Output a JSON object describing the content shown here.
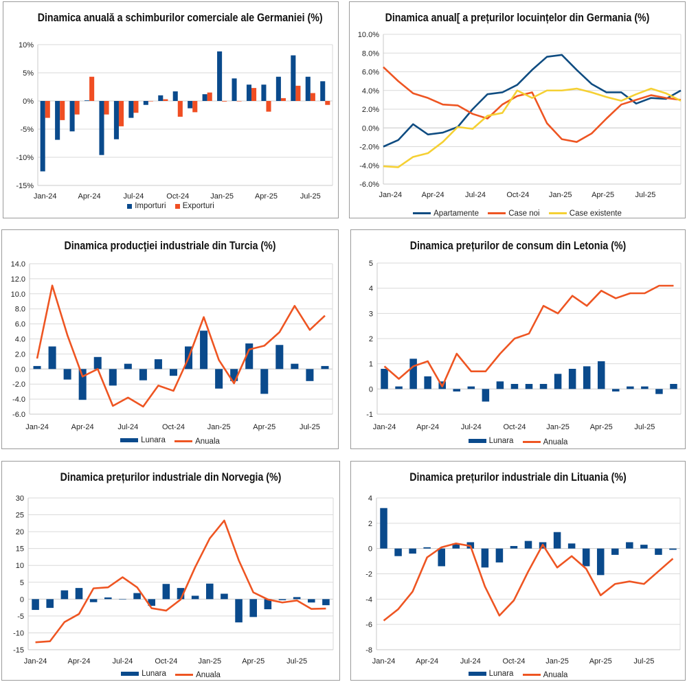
{
  "colors": {
    "blue": "#0a4a8c",
    "orange": "#f04e23",
    "red_line": "#ee5522",
    "yellow": "#f5d033",
    "grid": "#d9d9d9"
  },
  "chart_data": [
    {
      "id": "germany-trade",
      "type": "bar",
      "title": "Dinamica anuală a schimburilor comerciale ale Germaniei (%)",
      "xlabel": "",
      "ylabel": "",
      "categories": [
        "Jan-24",
        "Feb-24",
        "Mar-24",
        "Apr-24",
        "May-24",
        "Jun-24",
        "Jul-24",
        "Aug-24",
        "Sep-24",
        "Oct-24",
        "Nov-24",
        "Dec-24",
        "Jan-25",
        "Feb-25",
        "Mar-25",
        "Apr-25",
        "May-25",
        "Jun-25",
        "Jul-25",
        "Aug-25"
      ],
      "x_tick_labels": [
        "Jan-24",
        "Apr-24",
        "Jul-24",
        "Oct-24",
        "Jan-25",
        "Apr-25",
        "Jul-25"
      ],
      "y_tick_labels": [
        "10%",
        "5%",
        "0%",
        "-5%",
        "-10%",
        "-15%"
      ],
      "ylim": [
        -15,
        10
      ],
      "ystep": 5,
      "grid": true,
      "legend_position": "bottom",
      "series": [
        {
          "name": "Importuri",
          "kind": "bar",
          "color": "#0a4a8c",
          "values": [
            -12.5,
            -6.9,
            -5.4,
            0.1,
            -9.6,
            -6.8,
            -3.0,
            -0.7,
            1.0,
            1.7,
            -1.3,
            1.2,
            8.8,
            4.0,
            2.9,
            2.9,
            4.3,
            8.1,
            4.3,
            3.5
          ]
        },
        {
          "name": "Exporturi",
          "kind": "bar",
          "color": "#f04e23",
          "values": [
            -3.0,
            -3.4,
            -2.4,
            4.3,
            -2.4,
            -4.5,
            -2.1,
            0.0,
            0.3,
            -2.8,
            -2.0,
            1.5,
            -0.1,
            0.0,
            2.3,
            -1.9,
            0.5,
            2.7,
            1.4,
            -0.7
          ]
        }
      ]
    },
    {
      "id": "germany-housing",
      "type": "line",
      "title": "Dinamica anual[ a prețurilor locuințelor din Germania (%)",
      "xlabel": "",
      "ylabel": "",
      "categories": [
        "Jan-24",
        "Feb-24",
        "Mar-24",
        "Apr-24",
        "May-24",
        "Jun-24",
        "Jul-24",
        "Aug-24",
        "Sep-24",
        "Oct-24",
        "Nov-24",
        "Dec-24",
        "Jan-25",
        "Feb-25",
        "Mar-25",
        "Apr-25",
        "May-25",
        "Jun-25",
        "Jul-25",
        "Aug-25",
        "Sep-25"
      ],
      "x_tick_labels": [
        "Jan-24",
        "Apr-24",
        "Jul-24",
        "Oct-24",
        "Jan-25",
        "Apr-25",
        "Jul-25"
      ],
      "y_tick_labels": [
        "10.0%",
        "8.0%",
        "6.0%",
        "4.0%",
        "2.0%",
        "0.0%",
        "-2.0%",
        "-4.0%",
        "-6.0%"
      ],
      "ylim": [
        -6,
        10
      ],
      "ystep": 2,
      "grid": true,
      "legend_position": "bottom",
      "series": [
        {
          "name": "Apartamente",
          "kind": "line",
          "color": "#0f4c81",
          "values": [
            -2.0,
            -1.3,
            0.4,
            -0.7,
            -0.5,
            0.1,
            2.0,
            3.6,
            3.8,
            4.6,
            6.2,
            7.6,
            7.8,
            6.2,
            4.7,
            3.8,
            3.8,
            2.6,
            3.2,
            3.1,
            4.0
          ]
        },
        {
          "name": "Case noi",
          "kind": "line",
          "color": "#ee5522",
          "values": [
            6.5,
            5.0,
            3.7,
            3.2,
            2.5,
            2.4,
            1.5,
            1.0,
            2.5,
            3.4,
            3.8,
            0.5,
            -1.2,
            -1.5,
            -0.6,
            1.0,
            2.5,
            3.0,
            3.5,
            3.2,
            3.0
          ]
        },
        {
          "name": "Case existente",
          "kind": "line",
          "color": "#f5d033",
          "values": [
            -4.1,
            -4.2,
            -3.1,
            -2.7,
            -1.5,
            0.1,
            -0.1,
            1.3,
            1.6,
            4.0,
            3.2,
            4.0,
            4.0,
            4.2,
            3.8,
            3.3,
            2.9,
            3.6,
            4.2,
            3.7,
            2.9
          ]
        }
      ]
    },
    {
      "id": "turkey-industrial-production",
      "type": "bar",
      "title": "Dinamica producţiei industriale din Turcia (%)",
      "xlabel": "",
      "ylabel": "",
      "categories": [
        "Jan-24",
        "Feb-24",
        "Mar-24",
        "Apr-24",
        "May-24",
        "Jun-24",
        "Jul-24",
        "Aug-24",
        "Sep-24",
        "Oct-24",
        "Nov-24",
        "Dec-24",
        "Jan-25",
        "Feb-25",
        "Mar-25",
        "Apr-25",
        "May-25",
        "Jun-25",
        "Jul-25",
        "Aug-25"
      ],
      "x_tick_labels": [
        "Jan-24",
        "Apr-24",
        "Jul-24",
        "Oct-24",
        "Jan-25",
        "Apr-25",
        "Jul-25"
      ],
      "y_tick_labels": [
        "14.0",
        "12.0",
        "10.0",
        "8.0",
        "6.0",
        "4.0",
        "2.0",
        "0.0",
        "-2.0",
        "-4.0",
        "-6.0"
      ],
      "ylim": [
        -6,
        14
      ],
      "ystep": 2,
      "grid": true,
      "legend_position": "bottom",
      "series": [
        {
          "name": "Lunara",
          "kind": "bar",
          "color": "#0a4a8c",
          "values": [
            0.4,
            3.0,
            -1.4,
            -4.1,
            1.6,
            -2.2,
            0.7,
            -1.5,
            1.3,
            -0.9,
            3.0,
            5.1,
            -2.6,
            -1.6,
            3.4,
            -3.3,
            3.2,
            0.7,
            -1.6,
            0.4
          ]
        },
        {
          "name": "Anuala",
          "kind": "line",
          "color": "#ee5522",
          "values": [
            1.4,
            11.1,
            4.5,
            -1.0,
            0.0,
            -4.9,
            -3.8,
            -5.0,
            -2.2,
            -2.9,
            1.5,
            6.9,
            1.2,
            -1.9,
            2.6,
            3.1,
            4.9,
            8.4,
            5.2,
            7.1
          ]
        }
      ]
    },
    {
      "id": "latvia-cpi",
      "type": "bar",
      "title": "Dinamica prețurilor de consum din Letonia (%)",
      "xlabel": "",
      "ylabel": "",
      "categories": [
        "Jan-24",
        "Feb-24",
        "Mar-24",
        "Apr-24",
        "May-24",
        "Jun-24",
        "Jul-24",
        "Aug-24",
        "Sep-24",
        "Oct-24",
        "Nov-24",
        "Dec-24",
        "Jan-25",
        "Feb-25",
        "Mar-25",
        "Apr-25",
        "May-25",
        "Jun-25",
        "Jul-25",
        "Aug-25",
        "Sep-25"
      ],
      "x_tick_labels": [
        "Jan-24",
        "Apr-24",
        "Jul-24",
        "Oct-24",
        "Jan-25",
        "Apr-25",
        "Jul-25"
      ],
      "y_tick_labels": [
        "5",
        "4",
        "3",
        "2",
        "1",
        "0",
        "-1"
      ],
      "ylim": [
        -1,
        5
      ],
      "ystep": 1,
      "grid": true,
      "legend_position": "bottom",
      "series": [
        {
          "name": "Lunara",
          "kind": "bar",
          "color": "#0a4a8c",
          "values": [
            0.8,
            0.1,
            1.2,
            0.5,
            0.3,
            -0.1,
            0.1,
            -0.5,
            0.3,
            0.2,
            0.2,
            0.2,
            0.6,
            0.8,
            0.9,
            1.1,
            -0.1,
            0.1,
            0.1,
            -0.2,
            0.2
          ]
        },
        {
          "name": "Anuala",
          "kind": "line",
          "color": "#ee5522",
          "values": [
            0.9,
            0.4,
            0.9,
            1.1,
            0.1,
            1.4,
            0.7,
            0.7,
            1.4,
            2.0,
            2.2,
            3.3,
            3.0,
            3.7,
            3.3,
            3.9,
            3.6,
            3.8,
            3.8,
            4.1,
            4.1
          ]
        }
      ]
    },
    {
      "id": "norway-industrial-prices",
      "type": "bar",
      "title": "Dinamica prețurilor industriale din Norvegia (%)",
      "xlabel": "",
      "ylabel": "",
      "categories": [
        "Jan-24",
        "Feb-24",
        "Mar-24",
        "Apr-24",
        "May-24",
        "Jun-24",
        "Jul-24",
        "Aug-24",
        "Sep-24",
        "Oct-24",
        "Nov-24",
        "Dec-24",
        "Jan-25",
        "Feb-25",
        "Mar-25",
        "Apr-25",
        "May-25",
        "Jun-25",
        "Jul-25",
        "Aug-25",
        "Sep-25"
      ],
      "x_tick_labels": [
        "Jan-24",
        "Apr-24",
        "Jul-24",
        "Oct-24",
        "Jan-25",
        "Apr-25",
        "Jul-25"
      ],
      "y_tick_labels": [
        "30",
        "25",
        "20",
        "15",
        "10",
        "5",
        "0",
        "-5",
        "-10",
        "-15"
      ],
      "ylim": [
        -15,
        30
      ],
      "ystep": 5,
      "grid": true,
      "legend_position": "bottom",
      "series": [
        {
          "name": "Lunara",
          "kind": "bar",
          "color": "#0a4a8c",
          "values": [
            -3.2,
            -2.6,
            2.6,
            3.3,
            -0.9,
            0.5,
            0.0,
            1.8,
            -2.0,
            4.5,
            3.3,
            1.0,
            4.6,
            1.6,
            -6.9,
            -5.3,
            -3.0,
            -0.3,
            0.6,
            -1.0,
            -1.8
          ]
        },
        {
          "name": "Anuala",
          "kind": "line",
          "color": "#ee5522",
          "values": [
            -12.8,
            -12.5,
            -6.8,
            -4.4,
            3.2,
            3.5,
            6.5,
            3.5,
            -2.7,
            -3.4,
            -0.1,
            9.5,
            18.0,
            23.3,
            11.5,
            2.0,
            -0.1,
            -1.0,
            -0.4,
            -2.9,
            -2.8
          ]
        }
      ]
    },
    {
      "id": "lithuania-industrial-prices",
      "type": "bar",
      "title": "Dinamica prețurilor industriale din Lituania (%)",
      "xlabel": "",
      "ylabel": "",
      "categories": [
        "Jan-24",
        "Feb-24",
        "Mar-24",
        "Apr-24",
        "May-24",
        "Jun-24",
        "Jul-24",
        "Aug-24",
        "Sep-24",
        "Oct-24",
        "Nov-24",
        "Dec-24",
        "Jan-25",
        "Feb-25",
        "Mar-25",
        "Apr-25",
        "May-25",
        "Jun-25",
        "Jul-25",
        "Aug-25",
        "Sep-25"
      ],
      "x_tick_labels": [
        "Jan-24",
        "Apr-24",
        "Jul-24",
        "Oct-24",
        "Jan-25",
        "Apr-25",
        "Jul-25"
      ],
      "y_tick_labels": [
        "4",
        "2",
        "0",
        "-2",
        "-4",
        "-6",
        "-8"
      ],
      "ylim": [
        -8,
        4
      ],
      "ystep": 2,
      "grid": true,
      "legend_position": "bottom",
      "series": [
        {
          "name": "Lunara",
          "kind": "bar",
          "color": "#0a4a8c",
          "values": [
            3.2,
            -0.6,
            -0.4,
            0.1,
            -1.4,
            0.4,
            0.5,
            -1.5,
            -1.1,
            0.2,
            0.6,
            0.5,
            1.3,
            0.4,
            -1.4,
            -2.1,
            -0.5,
            0.5,
            0.3,
            -0.5,
            -0.1
          ]
        },
        {
          "name": "Anuala",
          "kind": "line",
          "color": "#ee5522",
          "values": [
            -5.7,
            -4.8,
            -3.4,
            -0.7,
            0.1,
            0.4,
            0.2,
            -3.0,
            -5.3,
            -4.1,
            -1.8,
            0.3,
            -1.5,
            -0.6,
            -1.6,
            -3.7,
            -2.8,
            -2.6,
            -2.8,
            -1.8,
            -0.8
          ]
        }
      ]
    }
  ]
}
